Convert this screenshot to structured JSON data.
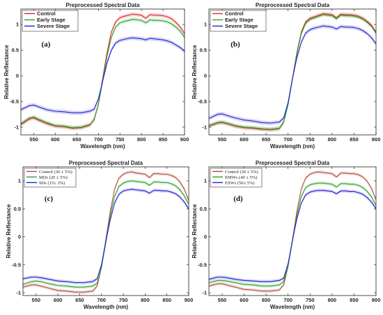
{
  "chart_data": [
    {
      "type": "line",
      "panel_label": "(a)",
      "title": "Preprocessed Spectral Data",
      "xlabel": "Wavelength (nm)",
      "ylabel": "Relative Reflectance",
      "xlim": [
        520,
        900
      ],
      "ylim": [
        -1.15,
        1.3
      ],
      "xticks": [
        550,
        600,
        650,
        700,
        750,
        800,
        850,
        900
      ],
      "yticks": [
        -1,
        -0.5,
        0,
        0.5,
        1
      ],
      "legend_position": "top-left",
      "x": [
        520,
        540,
        550,
        560,
        580,
        600,
        620,
        640,
        660,
        680,
        690,
        700,
        710,
        720,
        730,
        740,
        750,
        760,
        770,
        780,
        790,
        800,
        810,
        820,
        830,
        840,
        850,
        860,
        870,
        880,
        890,
        900
      ],
      "series": [
        {
          "name": "Control",
          "color": "#d62728",
          "band": 0.04,
          "values": [
            -0.95,
            -0.84,
            -0.82,
            -0.86,
            -0.93,
            -0.98,
            -0.99,
            -1.02,
            -1.01,
            -0.96,
            -0.85,
            -0.55,
            -0.05,
            0.45,
            0.85,
            1.05,
            1.13,
            1.16,
            1.18,
            1.2,
            1.19,
            1.18,
            1.12,
            1.19,
            1.18,
            1.18,
            1.17,
            1.15,
            1.11,
            1.04,
            0.95,
            0.82
          ]
        },
        {
          "name": "Early Stage",
          "color": "#2ca02c",
          "band": 0.04,
          "values": [
            -0.93,
            -0.82,
            -0.8,
            -0.84,
            -0.91,
            -0.97,
            -0.98,
            -1.01,
            -1.0,
            -0.95,
            -0.86,
            -0.56,
            -0.1,
            0.38,
            0.75,
            0.95,
            1.03,
            1.06,
            1.08,
            1.1,
            1.09,
            1.08,
            1.03,
            1.09,
            1.08,
            1.08,
            1.07,
            1.05,
            1.01,
            0.95,
            0.87,
            0.75
          ]
        },
        {
          "name": "Severe Stage",
          "color": "#1f1fd6",
          "band": 0.04,
          "values": [
            -0.66,
            -0.58,
            -0.57,
            -0.6,
            -0.66,
            -0.69,
            -0.7,
            -0.72,
            -0.72,
            -0.69,
            -0.65,
            -0.45,
            -0.1,
            0.25,
            0.5,
            0.64,
            0.69,
            0.71,
            0.73,
            0.74,
            0.73,
            0.72,
            0.7,
            0.73,
            0.72,
            0.71,
            0.7,
            0.68,
            0.65,
            0.6,
            0.55,
            0.48
          ]
        }
      ]
    },
    {
      "type": "line",
      "panel_label": "(b)",
      "title": "Preprocessed Spectral Data",
      "xlabel": "Wavelength (nm)",
      "ylabel": "Relative Reflectance",
      "xlim": [
        520,
        900
      ],
      "ylim": [
        -1.15,
        1.3
      ],
      "xticks": [
        550,
        600,
        650,
        700,
        750,
        800,
        850,
        900
      ],
      "yticks": [
        -1,
        -0.5,
        0,
        0.5,
        1
      ],
      "legend_position": "top-left",
      "x": [
        520,
        540,
        550,
        560,
        580,
        600,
        620,
        640,
        660,
        680,
        690,
        700,
        710,
        720,
        730,
        740,
        750,
        760,
        770,
        780,
        790,
        800,
        810,
        820,
        830,
        840,
        850,
        860,
        870,
        880,
        890,
        900
      ],
      "series": [
        {
          "name": "Control",
          "color": "#d62728",
          "band": 0.04,
          "values": [
            -0.98,
            -0.92,
            -0.91,
            -0.93,
            -0.98,
            -1.01,
            -1.02,
            -1.04,
            -1.05,
            -1.03,
            -0.9,
            -0.55,
            -0.05,
            0.45,
            0.85,
            1.05,
            1.12,
            1.15,
            1.18,
            1.21,
            1.2,
            1.19,
            1.13,
            1.2,
            1.19,
            1.19,
            1.18,
            1.16,
            1.12,
            1.06,
            0.98,
            0.85
          ]
        },
        {
          "name": "Early Stage",
          "color": "#2ca02c",
          "band": 0.04,
          "values": [
            -0.97,
            -0.91,
            -0.9,
            -0.92,
            -0.97,
            -1.0,
            -1.01,
            -1.03,
            -1.04,
            -1.02,
            -0.9,
            -0.56,
            -0.07,
            0.42,
            0.82,
            1.02,
            1.1,
            1.13,
            1.16,
            1.19,
            1.18,
            1.17,
            1.11,
            1.18,
            1.17,
            1.17,
            1.16,
            1.14,
            1.1,
            1.04,
            0.96,
            0.83
          ]
        },
        {
          "name": "Severe Stage",
          "color": "#1f1fd6",
          "band": 0.04,
          "values": [
            -0.83,
            -0.75,
            -0.74,
            -0.77,
            -0.82,
            -0.86,
            -0.88,
            -0.91,
            -0.92,
            -0.9,
            -0.82,
            -0.52,
            -0.05,
            0.35,
            0.65,
            0.83,
            0.9,
            0.93,
            0.95,
            0.97,
            0.96,
            0.95,
            0.91,
            0.96,
            0.95,
            0.95,
            0.94,
            0.92,
            0.88,
            0.82,
            0.74,
            0.62
          ]
        }
      ]
    },
    {
      "type": "line",
      "panel_label": "(c)",
      "title": "Preprocessed Spectral Data",
      "xlabel": "Wavelength (nm)",
      "ylabel": "Relative Reflectance",
      "xlim": [
        520,
        900
      ],
      "ylim": [
        -1.05,
        1.25
      ],
      "xticks": [
        550,
        600,
        650,
        700,
        750,
        800,
        850,
        900
      ],
      "yticks": [
        -1,
        -0.5,
        0,
        0.5,
        1
      ],
      "legend_position": "top-left",
      "x": [
        520,
        540,
        550,
        560,
        580,
        600,
        620,
        640,
        660,
        680,
        690,
        700,
        710,
        720,
        730,
        740,
        750,
        760,
        770,
        780,
        790,
        800,
        810,
        820,
        830,
        840,
        850,
        860,
        870,
        880,
        890,
        900
      ],
      "series": [
        {
          "name": "Control (30 ± 5%)",
          "color": "#b24a3a",
          "band": 0.03,
          "values": [
            -0.9,
            -0.86,
            -0.86,
            -0.88,
            -0.92,
            -0.96,
            -0.97,
            -0.99,
            -0.99,
            -0.97,
            -0.88,
            -0.55,
            -0.05,
            0.45,
            0.85,
            1.05,
            1.12,
            1.15,
            1.16,
            1.14,
            1.13,
            1.12,
            1.06,
            1.13,
            1.13,
            1.12,
            1.12,
            1.1,
            1.06,
            0.98,
            0.85,
            0.65
          ]
        },
        {
          "name": "MDs (20 ± 5%)",
          "color": "#2ca02c",
          "band": 0.03,
          "values": [
            -0.85,
            -0.8,
            -0.79,
            -0.8,
            -0.84,
            -0.87,
            -0.88,
            -0.9,
            -0.9,
            -0.88,
            -0.83,
            -0.55,
            -0.1,
            0.38,
            0.72,
            0.9,
            0.96,
            0.99,
            1.0,
            0.99,
            0.98,
            0.97,
            0.92,
            0.98,
            0.98,
            0.97,
            0.97,
            0.95,
            0.91,
            0.84,
            0.73,
            0.58
          ]
        },
        {
          "name": "SDs (15± 3%)",
          "color": "#1f1fd6",
          "band": 0.03,
          "values": [
            -0.75,
            -0.72,
            -0.72,
            -0.73,
            -0.76,
            -0.79,
            -0.8,
            -0.82,
            -0.82,
            -0.8,
            -0.75,
            -0.5,
            -0.08,
            0.3,
            0.6,
            0.76,
            0.82,
            0.84,
            0.85,
            0.84,
            0.83,
            0.82,
            0.78,
            0.83,
            0.83,
            0.82,
            0.82,
            0.8,
            0.77,
            0.71,
            0.62,
            0.5
          ]
        }
      ]
    },
    {
      "type": "line",
      "panel_label": "(d)",
      "title": "Preprocessed Spectral Data",
      "xlabel": "Wavelength (nm)",
      "ylabel": "Relative Reflectance",
      "xlim": [
        520,
        900
      ],
      "ylim": [
        -1.05,
        1.25
      ],
      "xticks": [
        550,
        600,
        650,
        700,
        750,
        800,
        850,
        900
      ],
      "yticks": [
        -1,
        -0.5,
        0,
        0.5,
        1
      ],
      "legend_position": "top-left",
      "x": [
        520,
        540,
        550,
        560,
        580,
        600,
        620,
        640,
        660,
        680,
        690,
        700,
        710,
        720,
        730,
        740,
        750,
        760,
        770,
        780,
        790,
        800,
        810,
        820,
        830,
        840,
        850,
        860,
        870,
        880,
        890,
        900
      ],
      "series": [
        {
          "name": "Control (30 ± 5%)",
          "color": "#b24a3a",
          "band": 0.03,
          "values": [
            -0.88,
            -0.84,
            -0.84,
            -0.86,
            -0.9,
            -0.94,
            -0.95,
            -0.97,
            -0.97,
            -0.95,
            -0.86,
            -0.53,
            -0.05,
            0.45,
            0.85,
            1.05,
            1.12,
            1.15,
            1.16,
            1.15,
            1.14,
            1.13,
            1.07,
            1.14,
            1.14,
            1.13,
            1.13,
            1.11,
            1.07,
            0.99,
            0.86,
            0.66
          ]
        },
        {
          "name": "EMWs (40 ± 5%)",
          "color": "#2ca02c",
          "band": 0.03,
          "values": [
            -0.82,
            -0.78,
            -0.78,
            -0.79,
            -0.82,
            -0.85,
            -0.86,
            -0.88,
            -0.88,
            -0.86,
            -0.8,
            -0.52,
            -0.08,
            0.38,
            0.72,
            0.88,
            0.93,
            0.95,
            0.96,
            0.96,
            0.95,
            0.94,
            0.89,
            0.95,
            0.95,
            0.94,
            0.94,
            0.92,
            0.88,
            0.81,
            0.71,
            0.56
          ]
        },
        {
          "name": "ESWs (50± 5%)",
          "color": "#1f1fd6",
          "band": 0.03,
          "values": [
            -0.76,
            -0.72,
            -0.72,
            -0.73,
            -0.76,
            -0.78,
            -0.79,
            -0.8,
            -0.8,
            -0.78,
            -0.74,
            -0.48,
            -0.06,
            0.32,
            0.6,
            0.75,
            0.8,
            0.82,
            0.83,
            0.83,
            0.82,
            0.81,
            0.77,
            0.82,
            0.82,
            0.81,
            0.81,
            0.79,
            0.76,
            0.7,
            0.62,
            0.5
          ]
        }
      ]
    }
  ]
}
